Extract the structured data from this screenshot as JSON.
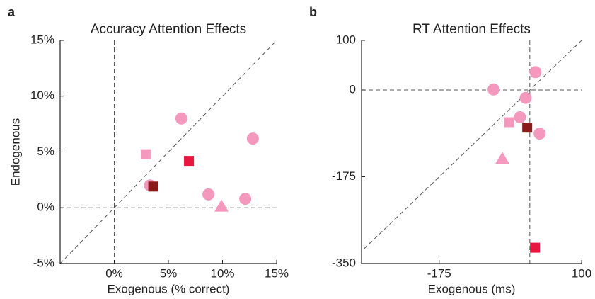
{
  "chart_data": [
    {
      "type": "scatter",
      "panel": "a",
      "title": "Accuracy Attention Effects",
      "x_label": "Exogenous (% correct)",
      "y_label": "Endogenous",
      "xlim": [
        -5,
        15
      ],
      "ylim": [
        -5,
        15
      ],
      "xticks": [
        {
          "value": 0,
          "label": "0%"
        },
        {
          "value": 5,
          "label": "5%"
        },
        {
          "value": 10,
          "label": "10%"
        },
        {
          "value": 15,
          "label": "15%"
        }
      ],
      "yticks": [
        {
          "value": -5,
          "label": "-5%"
        },
        {
          "value": 0,
          "label": "0%"
        },
        {
          "value": 5,
          "label": "5%"
        },
        {
          "value": 10,
          "label": "10%"
        },
        {
          "value": 15,
          "label": "15%"
        }
      ],
      "series": [
        {
          "marker": "circle",
          "color": "#f598bd",
          "x": [
            6.2,
            12.8,
            3.3,
            8.7,
            12.1
          ],
          "values": [
            8.0,
            6.2,
            2.0,
            1.2,
            0.8
          ]
        },
        {
          "marker": "square",
          "color": "#f598bd",
          "x": [
            2.9
          ],
          "values": [
            4.8
          ]
        },
        {
          "marker": "square",
          "color": "#e8173f",
          "x": [
            6.9
          ],
          "values": [
            4.2
          ]
        },
        {
          "marker": "square",
          "color": "#8b1a1a",
          "x": [
            3.6
          ],
          "values": [
            1.9
          ]
        },
        {
          "marker": "triangle",
          "color": "#f598bd",
          "x": [
            9.9
          ],
          "values": [
            0.1
          ]
        }
      ]
    },
    {
      "type": "scatter",
      "panel": "b",
      "title": "RT Attention Effects",
      "x_label": "Exogenous (ms)",
      "xlim": [
        -325,
        100
      ],
      "ylim": [
        -350,
        100
      ],
      "xticks": [
        -175,
        100
      ],
      "yticks": [
        -350,
        -175,
        0,
        100
      ],
      "series": [
        {
          "marker": "circle",
          "color": "#f598bd",
          "x": [
            11,
            -70,
            -8,
            -19,
            19
          ],
          "values": [
            36,
            1,
            -16,
            -55,
            -88
          ]
        },
        {
          "marker": "square",
          "color": "#f598bd",
          "x": [
            -40
          ],
          "values": [
            -65
          ]
        },
        {
          "marker": "square",
          "color": "#8b1a1a",
          "x": [
            -5
          ],
          "values": [
            -76
          ]
        },
        {
          "marker": "triangle",
          "color": "#f598bd",
          "x": [
            -53
          ],
          "values": [
            -139
          ]
        },
        {
          "marker": "square",
          "color": "#e8173f",
          "x": [
            10
          ],
          "values": [
            -318
          ]
        }
      ]
    }
  ]
}
